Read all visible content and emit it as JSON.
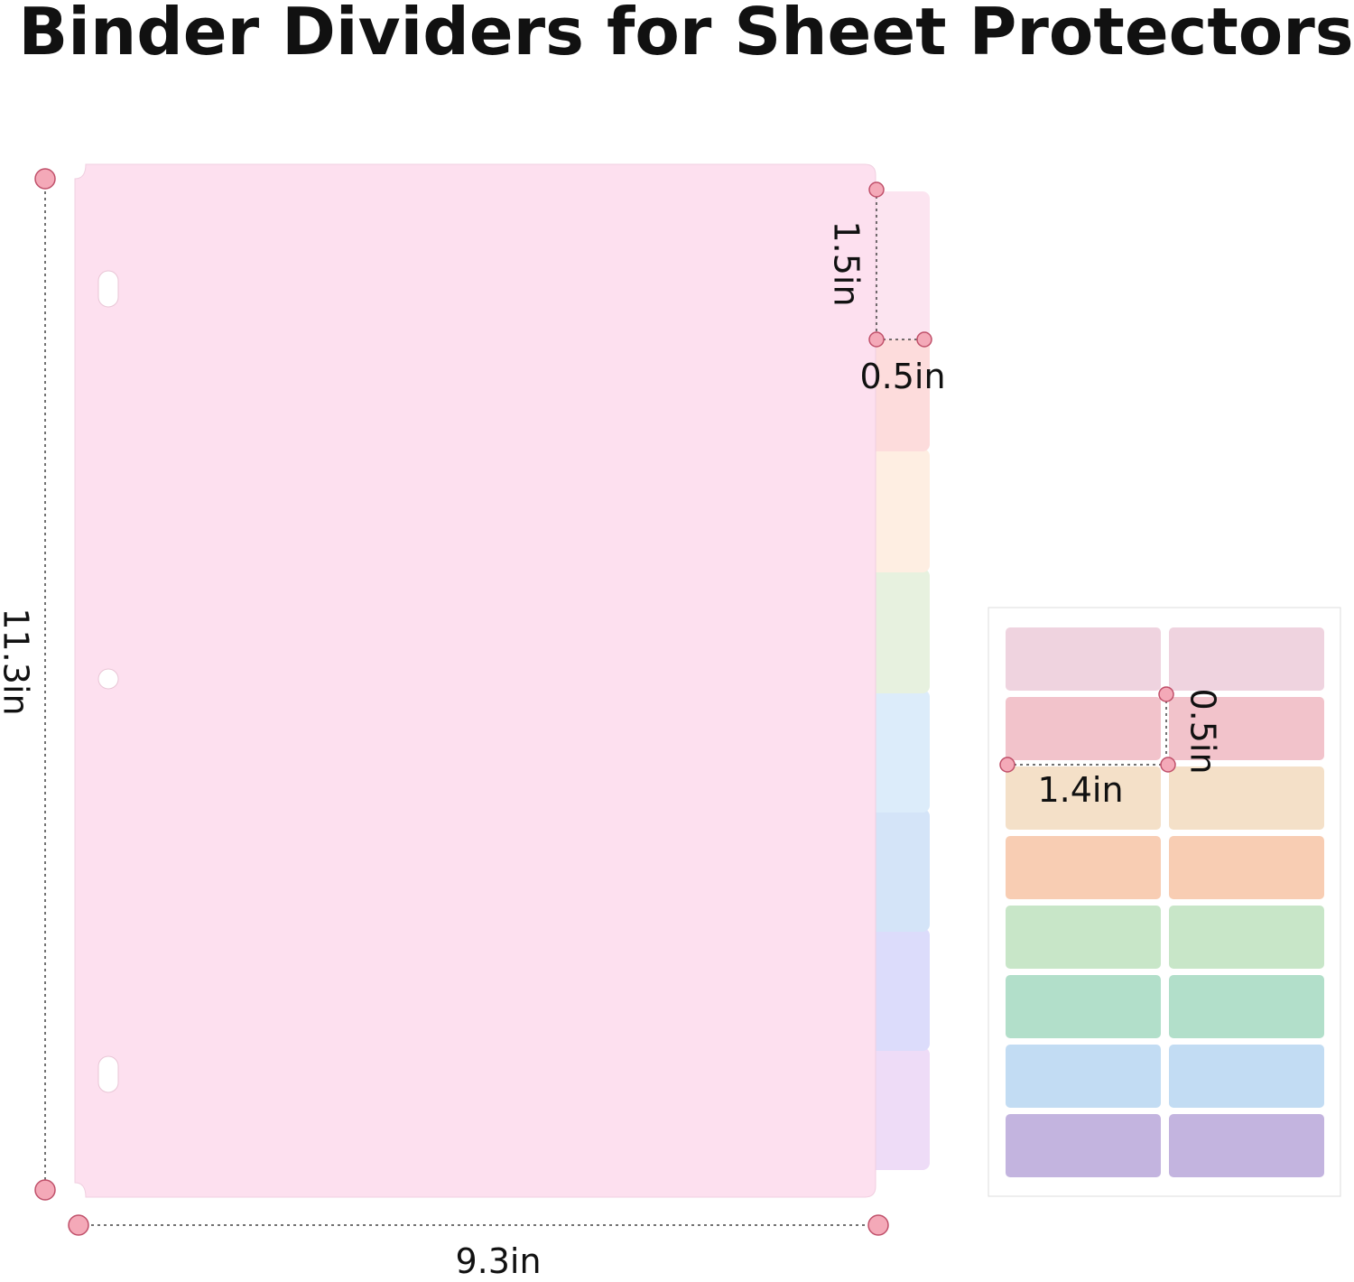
{
  "title": "Binder Dividers for Sheet Protectors",
  "dimensions": {
    "height": "11.3in",
    "width": "9.3in",
    "tab_height": "1.5in",
    "tab_width": "0.5in",
    "label_width": "1.4in",
    "label_height": "0.5in"
  }
}
